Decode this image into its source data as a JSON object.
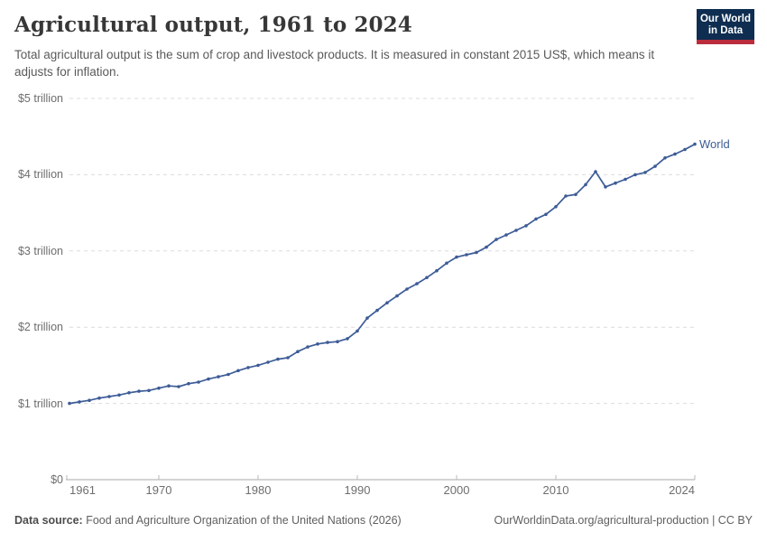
{
  "header": {
    "title": "Agricultural output, 1961 to 2024",
    "subtitle": "Total agricultural output is the sum of crop and livestock products. It is measured in constant 2015 US$, which means it adjusts for inflation."
  },
  "logo": {
    "line1": "Our World",
    "line2": "in Data",
    "bg_color": "#0e2d51",
    "accent_color": "#bb2d3c"
  },
  "chart_data": {
    "type": "line",
    "title": "Agricultural output, 1961 to 2024",
    "unit": "constant 2015 US$",
    "xlabel": "",
    "ylabel": "",
    "xlim": [
      1961,
      2024
    ],
    "ylim": [
      0,
      5
    ],
    "grid": "horizontal-dashed",
    "legend_position": "end-of-line-label",
    "x_ticks": [
      1961,
      1970,
      1980,
      1990,
      2000,
      2010,
      2024
    ],
    "y_ticks": [
      {
        "value": 0,
        "label": "$0"
      },
      {
        "value": 1,
        "label": "$1 trillion"
      },
      {
        "value": 2,
        "label": "$2 trillion"
      },
      {
        "value": 3,
        "label": "$3 trillion"
      },
      {
        "value": 4,
        "label": "$4 trillion"
      },
      {
        "value": 5,
        "label": "$5 trillion"
      }
    ],
    "series": [
      {
        "name": "World",
        "color": "#3d5c97",
        "x": [
          1961,
          1962,
          1963,
          1964,
          1965,
          1966,
          1967,
          1968,
          1969,
          1970,
          1971,
          1972,
          1973,
          1974,
          1975,
          1976,
          1977,
          1978,
          1979,
          1980,
          1981,
          1982,
          1983,
          1984,
          1985,
          1986,
          1987,
          1988,
          1989,
          1990,
          1991,
          1992,
          1993,
          1994,
          1995,
          1996,
          1997,
          1998,
          1999,
          2000,
          2001,
          2002,
          2003,
          2004,
          2005,
          2006,
          2007,
          2008,
          2009,
          2010,
          2011,
          2012,
          2013,
          2014,
          2015,
          2016,
          2017,
          2018,
          2019,
          2020,
          2021,
          2022,
          2023,
          2024
        ],
        "values": [
          1.0,
          1.02,
          1.04,
          1.07,
          1.09,
          1.11,
          1.14,
          1.16,
          1.17,
          1.2,
          1.23,
          1.22,
          1.26,
          1.28,
          1.32,
          1.35,
          1.38,
          1.43,
          1.47,
          1.5,
          1.54,
          1.58,
          1.6,
          1.68,
          1.74,
          1.78,
          1.8,
          1.81,
          1.85,
          1.95,
          2.12,
          2.22,
          2.32,
          2.41,
          2.5,
          2.57,
          2.65,
          2.74,
          2.84,
          2.92,
          2.95,
          2.98,
          3.05,
          3.15,
          3.21,
          3.27,
          3.33,
          3.42,
          3.48,
          3.58,
          3.72,
          3.74,
          3.87,
          4.04,
          3.84,
          3.89,
          3.94,
          4.0,
          4.03,
          4.11,
          4.22,
          4.27,
          4.33,
          4.4
        ]
      }
    ]
  },
  "colors": {
    "gridline": "#dbdbdb",
    "axis": "#a8a8a8",
    "tick": "#b8b8b8"
  },
  "footer": {
    "datasource_label": "Data source:",
    "datasource_text": " Food and Agriculture Organization of the United Nations (2026)",
    "link": "OurWorldinData.org/agricultural-production | CC BY"
  }
}
